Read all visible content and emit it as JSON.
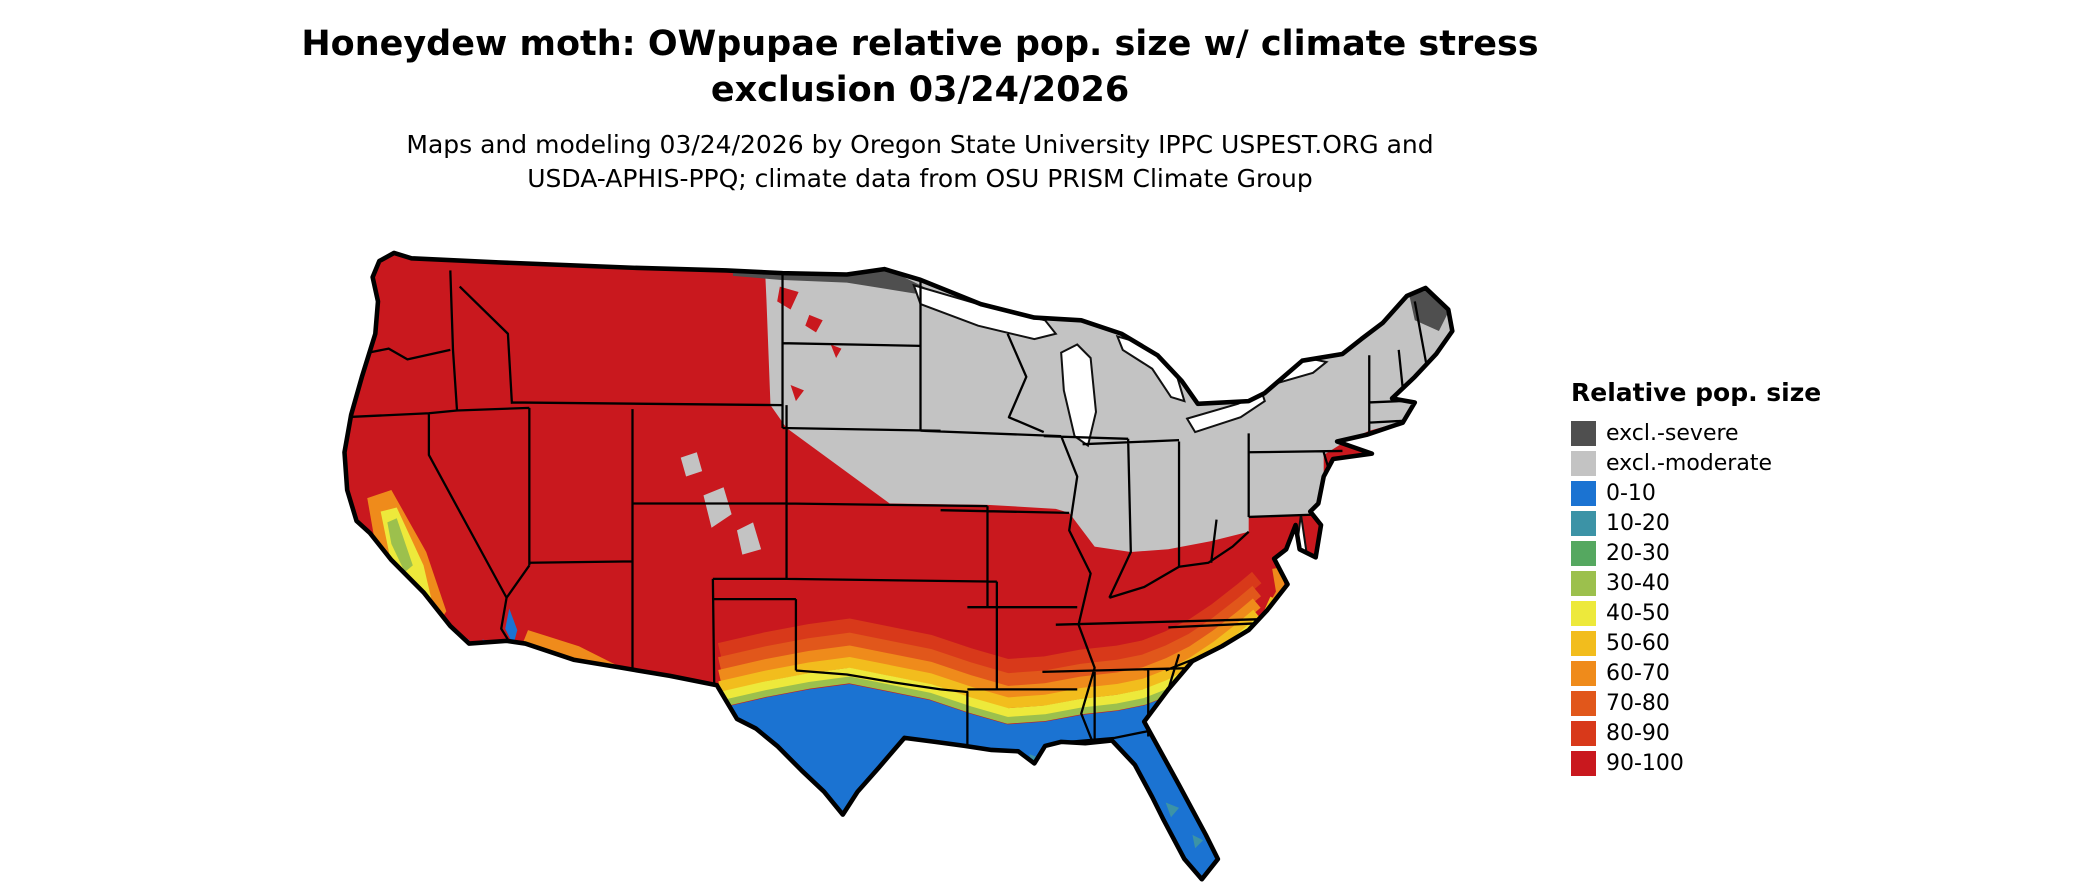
{
  "title": {
    "line1": "Honeydew moth: OWpupae relative pop. size w/ climate stress",
    "line2": "exclusion 03/24/2026"
  },
  "subtitle": {
    "line1": "Maps and modeling 03/24/2026 by Oregon State University IPPC USPEST.ORG and",
    "line2": "USDA-APHIS-PPQ; climate data from OSU PRISM Climate Group"
  },
  "legend": {
    "title": "Relative pop. size",
    "items": [
      {
        "label": "excl.-severe",
        "color": "#4F4F4F"
      },
      {
        "label": "excl.-moderate",
        "color": "#C3C3C3"
      },
      {
        "label": "0-10",
        "color": "#1B73D2"
      },
      {
        "label": "10-20",
        "color": "#3C93A6"
      },
      {
        "label": "20-30",
        "color": "#55A860"
      },
      {
        "label": "30-40",
        "color": "#9CC04D"
      },
      {
        "label": "40-50",
        "color": "#EDE93B"
      },
      {
        "label": "50-60",
        "color": "#F2BD1D"
      },
      {
        "label": "60-70",
        "color": "#EF8B1B"
      },
      {
        "label": "70-80",
        "color": "#E1571B"
      },
      {
        "label": "80-90",
        "color": "#D8391A"
      },
      {
        "label": "90-100",
        "color": "#C9181E"
      }
    ]
  },
  "map": {
    "type": "choropleth-us",
    "description": "Continental US raster map of relative population size with climate stress exclusion",
    "regions": [
      {
        "name": "north-central-and-northeast",
        "class": "excl.-moderate"
      },
      {
        "name": "northern-plains-top-strip",
        "class": "excl.-severe"
      },
      {
        "name": "northern-maine-patch",
        "class": "excl.-severe"
      },
      {
        "name": "west-and-mid-south-band",
        "class": "90-100"
      },
      {
        "name": "gulf-south-texas-and-florida",
        "class": "0-10"
      },
      {
        "name": "central-texas-to-carolinas-transition",
        "class": "10-90 gradient"
      },
      {
        "name": "california-central-valley",
        "class": "40-80 mixed"
      },
      {
        "name": "southern-arizona-new-mexico",
        "class": "50-80 mixed"
      }
    ]
  }
}
